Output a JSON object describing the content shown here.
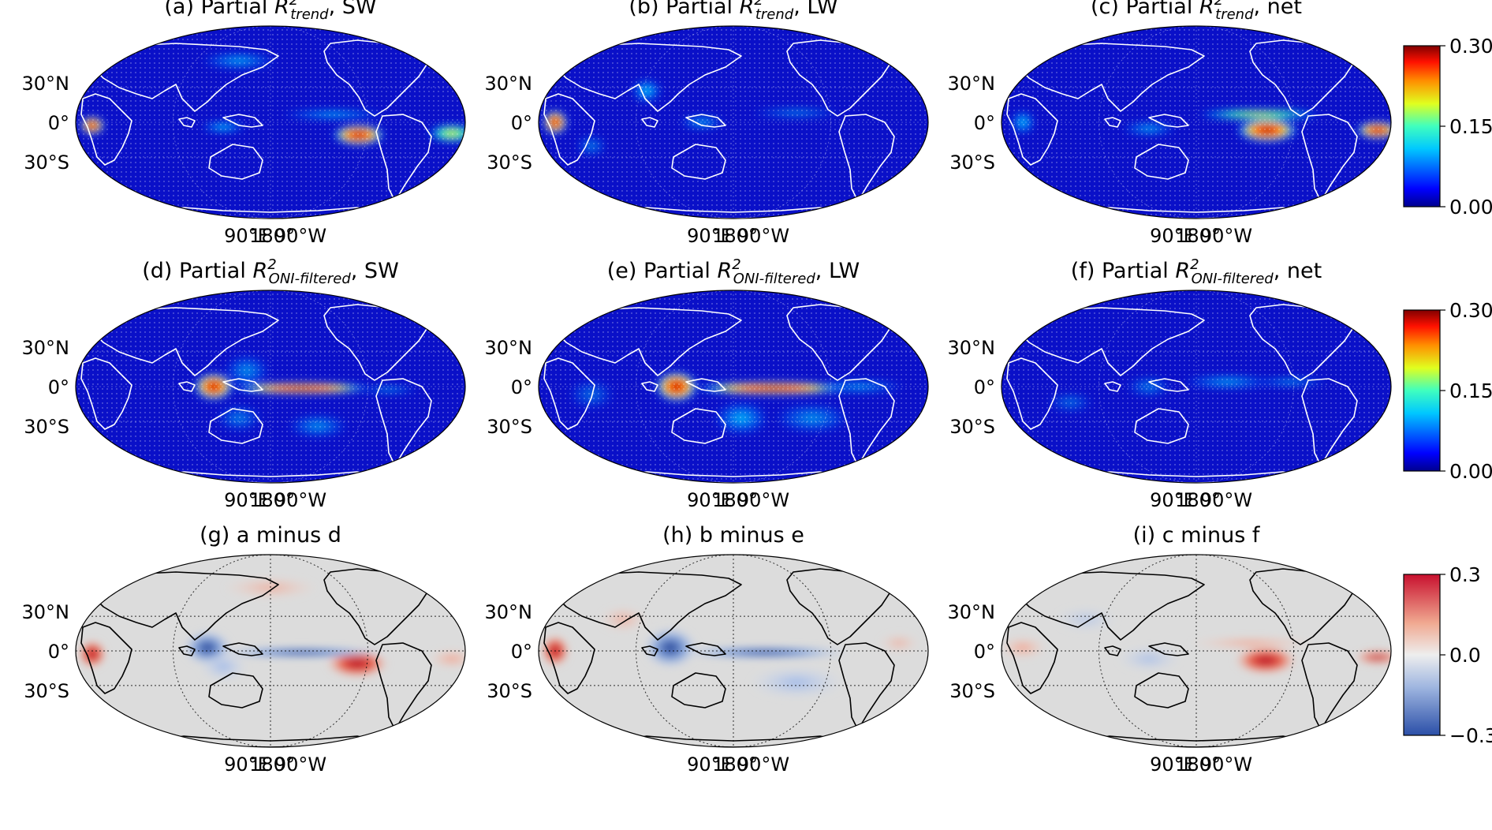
{
  "figure": {
    "panels": [
      {
        "id": "a",
        "title_prefix": "(a) Partial ",
        "var": "R",
        "sup": "2",
        "sub": "trend",
        "title_suffix": ", SW",
        "kind": "r2"
      },
      {
        "id": "b",
        "title_prefix": "(b) Partial ",
        "var": "R",
        "sup": "2",
        "sub": "trend",
        "title_suffix": ", LW",
        "kind": "r2"
      },
      {
        "id": "c",
        "title_prefix": "(c) Partial ",
        "var": "R",
        "sup": "2",
        "sub": "trend",
        "title_suffix": ", net",
        "kind": "r2"
      },
      {
        "id": "d",
        "title_prefix": "(d) Partial ",
        "var": "R",
        "sup": "2",
        "sub": "ONI-filtered",
        "title_suffix": ", SW",
        "kind": "r2"
      },
      {
        "id": "e",
        "title_prefix": "(e) Partial ",
        "var": "R",
        "sup": "2",
        "sub": "ONI-filtered",
        "title_suffix": ", LW",
        "kind": "r2"
      },
      {
        "id": "f",
        "title_prefix": "(f) Partial ",
        "var": "R",
        "sup": "2",
        "sub": "ONI-filtered",
        "title_suffix": ", net",
        "kind": "r2"
      },
      {
        "id": "g",
        "title_prefix": "(g) a minus d",
        "var": "",
        "sup": "",
        "sub": "",
        "title_suffix": "",
        "kind": "diff"
      },
      {
        "id": "h",
        "title_prefix": "(h) b minus e",
        "var": "",
        "sup": "",
        "sub": "",
        "title_suffix": "",
        "kind": "diff"
      },
      {
        "id": "i",
        "title_prefix": "(i) c minus f",
        "var": "",
        "sup": "",
        "sub": "",
        "title_suffix": "",
        "kind": "diff"
      }
    ],
    "lat_labels": [
      "30°N",
      "0°",
      "30°S"
    ],
    "lon_labels": [
      "90°E",
      "180°",
      "90°W"
    ],
    "colorbars": [
      {
        "row": 0,
        "ticks": [
          "0.30",
          "0.15",
          "0.00"
        ],
        "scale": "jet",
        "range": [
          0.0,
          0.3
        ]
      },
      {
        "row": 1,
        "ticks": [
          "0.30",
          "0.15",
          "0.00"
        ],
        "scale": "jet",
        "range": [
          0.0,
          0.3
        ]
      },
      {
        "row": 2,
        "ticks": [
          "0.3",
          "0.0",
          "−0.3"
        ],
        "scale": "RdBu_r",
        "range": [
          -0.3,
          0.3
        ]
      }
    ],
    "colors": {
      "jet_low": "#00008f",
      "jet_mid": "#00c8ff",
      "jet_high": "#800000",
      "diff_low": "#2b4fa8",
      "diff_mid": "#dcdcdc",
      "diff_high": "#c8102e",
      "r2_coast": "#ffffff",
      "diff_coast": "#000000"
    }
  }
}
